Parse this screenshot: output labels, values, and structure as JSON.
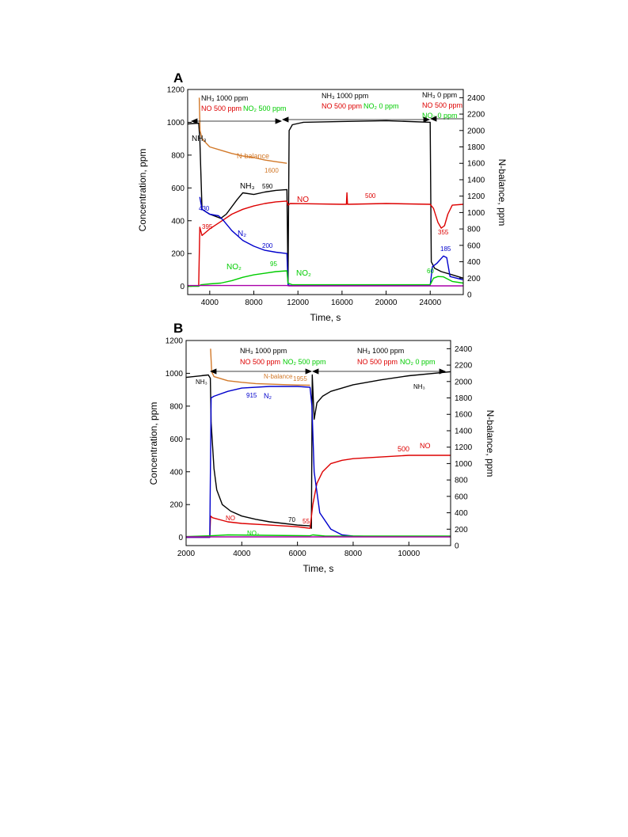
{
  "figure": {
    "panels": [
      {
        "letter": "A",
        "xlabel": "Time, s",
        "ylabel_left": "Concentration, ppm",
        "ylabel_right": "N-balance, ppm",
        "x_ticks": [
          "4000",
          "8000",
          "12000",
          "16000",
          "20000",
          "24000"
        ],
        "y_left_ticks": [
          "0",
          "200",
          "400",
          "600",
          "800",
          "1000",
          "1200"
        ],
        "y_right_ticks": [
          "0",
          "200",
          "400",
          "600",
          "800",
          "1000",
          "1200",
          "1400",
          "1600",
          "1800",
          "2000",
          "2200",
          "2400"
        ],
        "conditions": [
          {
            "nh3": "NH₃ 1000 ppm",
            "no": "NO 500 ppm",
            "no2": "NO₂ 500 ppm"
          },
          {
            "nh3": "NH₃ 1000 ppm",
            "no": "NO 500 ppm",
            "no2": "NO₂ 0 ppm"
          },
          {
            "nh3": "NH₃ 0 ppm",
            "no": "NO 500 ppm",
            "no2": "NO₂ 0 ppm"
          }
        ],
        "annotations": [
          {
            "text": "NH₃",
            "color": "#000000"
          },
          {
            "text": "N-balance",
            "color": "#d2792a"
          },
          {
            "text": "1600",
            "color": "#d2792a"
          },
          {
            "text": "NH₃",
            "color": "#000000"
          },
          {
            "text": "590",
            "color": "#000000"
          },
          {
            "text": "430",
            "color": "#0000cc"
          },
          {
            "text": "395",
            "color": "#dd0000"
          },
          {
            "text": "N₂",
            "color": "#0000cc"
          },
          {
            "text": "200",
            "color": "#0000cc"
          },
          {
            "text": "NO₂",
            "color": "#00cc00"
          },
          {
            "text": "95",
            "color": "#00cc00"
          },
          {
            "text": "NO",
            "color": "#dd0000"
          },
          {
            "text": "500",
            "color": "#dd0000"
          },
          {
            "text": "NO₂",
            "color": "#00cc00"
          },
          {
            "text": "185",
            "color": "#0000cc"
          },
          {
            "text": "355",
            "color": "#dd0000"
          },
          {
            "text": "60",
            "color": "#00cc00"
          }
        ]
      },
      {
        "letter": "B",
        "xlabel": "Time, s",
        "ylabel_left": "Concentration, ppm",
        "ylabel_right": "N-balance, ppm",
        "x_ticks": [
          "2000",
          "4000",
          "6000",
          "8000",
          "10000"
        ],
        "y_left_ticks": [
          "0",
          "200",
          "400",
          "600",
          "800",
          "1000",
          "1200"
        ],
        "y_right_ticks": [
          "0",
          "200",
          "400",
          "600",
          "800",
          "1000",
          "1200",
          "1400",
          "1600",
          "1800",
          "2000",
          "2200",
          "2400"
        ],
        "conditions": [
          {
            "nh3": "NH₃ 1000 ppm",
            "no": "NO 500 ppm",
            "no2": "NO₂ 500 ppm"
          },
          {
            "nh3": "NH₃ 1000 ppm",
            "no": "NO 500 ppm",
            "no2": "NO₂ 0 ppm"
          }
        ],
        "annotations": [
          {
            "text": "NH₃",
            "color": "#000000"
          },
          {
            "text": "N-balance",
            "color": "#d2792a"
          },
          {
            "text": "1955",
            "color": "#d2792a"
          },
          {
            "text": "915",
            "color": "#0000cc"
          },
          {
            "text": "N₂",
            "color": "#0000cc"
          },
          {
            "text": "NH₃",
            "color": "#000000"
          },
          {
            "text": "500",
            "color": "#dd0000"
          },
          {
            "text": "NO",
            "color": "#dd0000"
          },
          {
            "text": "NO",
            "color": "#dd0000"
          },
          {
            "text": "70",
            "color": "#000000"
          },
          {
            "text": "55",
            "color": "#dd0000"
          },
          {
            "text": "NO₂",
            "color": "#00cc00"
          }
        ]
      }
    ]
  },
  "chart_data": [
    {
      "type": "line",
      "panel": "A",
      "xlabel": "Time, s",
      "ylabel": "Concentration, ppm",
      "y2label": "N-balance, ppm",
      "xlim": [
        2000,
        27000
      ],
      "ylim": [
        -50,
        1200
      ],
      "y2lim": [
        0,
        2500
      ],
      "grid": false,
      "series": [
        {
          "name": "NH₃",
          "color": "#000000",
          "axis": "left",
          "x": [
            2000,
            3000,
            3100,
            3300,
            4000,
            5000,
            5500,
            6500,
            7000,
            8000,
            9000,
            10000,
            11000,
            11100,
            11200,
            11500,
            12500,
            16000,
            20000,
            24000,
            24100,
            24400,
            25000,
            26000,
            27000
          ],
          "y": [
            990,
            995,
            900,
            470,
            440,
            415,
            440,
            530,
            570,
            560,
            575,
            585,
            590,
            20,
            950,
            985,
            1000,
            1005,
            1010,
            1000,
            150,
            110,
            90,
            70,
            50
          ]
        },
        {
          "name": "NO",
          "color": "#dd0000",
          "axis": "left",
          "x": [
            2000,
            3000,
            3100,
            3300,
            4000,
            5000,
            6000,
            7000,
            8000,
            9000,
            10000,
            11000,
            11100,
            11300,
            16000,
            16400,
            16450,
            16500,
            20000,
            24000,
            24300,
            24700,
            25000,
            25300,
            25600,
            26000,
            27000
          ],
          "y": [
            0,
            5,
            360,
            310,
            350,
            395,
            440,
            470,
            490,
            505,
            515,
            520,
            495,
            505,
            500,
            500,
            570,
            500,
            505,
            500,
            475,
            390,
            355,
            370,
            440,
            495,
            500
          ]
        },
        {
          "name": "N₂",
          "color": "#0000cc",
          "axis": "left",
          "x": [
            3100,
            3300,
            4000,
            4800,
            5200,
            6000,
            7000,
            8000,
            9000,
            10000,
            11000,
            11100,
            11300,
            16000,
            20000,
            24000,
            24200,
            24600,
            25200,
            25500,
            25800,
            27000
          ],
          "y": [
            545,
            470,
            440,
            430,
            405,
            340,
            280,
            245,
            220,
            208,
            200,
            10,
            5,
            5,
            5,
            5,
            120,
            140,
            185,
            175,
            60,
            40
          ]
        },
        {
          "name": "NO₂",
          "color": "#00cc00",
          "axis": "left",
          "x": [
            2000,
            3000,
            3200,
            4000,
            5000,
            6000,
            7000,
            8000,
            9000,
            10000,
            11000,
            11100,
            11500,
            16000,
            20000,
            24000,
            24300,
            24700,
            25200,
            26000,
            27000
          ],
          "y": [
            0,
            0,
            10,
            15,
            20,
            35,
            55,
            70,
            80,
            90,
            95,
            20,
            10,
            10,
            10,
            10,
            50,
            60,
            58,
            30,
            20
          ]
        },
        {
          "name": "N-balance",
          "color": "#d2792a",
          "axis": "right",
          "x": [
            3050,
            3120,
            3300,
            4000,
            5000,
            6000,
            7000,
            8000,
            9000,
            10000,
            11000
          ],
          "y": [
            2400,
            2000,
            1900,
            1800,
            1760,
            1720,
            1690,
            1670,
            1640,
            1620,
            1600
          ]
        },
        {
          "name": "",
          "color": "#aa00aa",
          "axis": "left",
          "x": [
            2000,
            11000,
            11200,
            24000,
            27000
          ],
          "y": [
            5,
            5,
            3,
            3,
            3
          ]
        }
      ]
    },
    {
      "type": "line",
      "panel": "B",
      "xlabel": "Time, s",
      "ylabel": "Concentration, ppm",
      "y2label": "N-balance, ppm",
      "xlim": [
        2000,
        11500
      ],
      "ylim": [
        -50,
        1200
      ],
      "y2lim": [
        0,
        2500
      ],
      "grid": false,
      "series": [
        {
          "name": "NH₃",
          "color": "#000000",
          "axis": "left",
          "x": [
            2000,
            2800,
            2870,
            2900,
            3000,
            3100,
            3300,
            3600,
            4000,
            4500,
            5000,
            5500,
            6000,
            6450,
            6500,
            6530,
            6600,
            6700,
            6900,
            7200,
            7600,
            8000,
            9000,
            10000,
            11500
          ],
          "y": [
            975,
            990,
            970,
            700,
            420,
            290,
            200,
            160,
            130,
            110,
            95,
            85,
            75,
            70,
            55,
            990,
            720,
            820,
            860,
            890,
            910,
            930,
            960,
            985,
            1010
          ]
        },
        {
          "name": "NO",
          "color": "#dd0000",
          "axis": "left",
          "x": [
            2000,
            2850,
            2880,
            2950,
            3500,
            4000,
            5000,
            6000,
            6450,
            6550,
            6700,
            6900,
            7200,
            7600,
            8000,
            9000,
            10000,
            11500
          ],
          "y": [
            0,
            0,
            130,
            120,
            95,
            85,
            75,
            65,
            55,
            200,
            330,
            400,
            450,
            470,
            480,
            490,
            500,
            500
          ]
        },
        {
          "name": "N₂",
          "color": "#0000cc",
          "axis": "left",
          "x": [
            2000,
            2850,
            2900,
            3000,
            3500,
            4000,
            5000,
            6000,
            6450,
            6520,
            6600,
            6800,
            7200,
            7600,
            8000,
            9000,
            11500
          ],
          "y": [
            0,
            0,
            850,
            860,
            890,
            910,
            920,
            920,
            915,
            800,
            400,
            150,
            50,
            15,
            8,
            5,
            5
          ]
        },
        {
          "name": "NO₂",
          "color": "#00cc00",
          "axis": "left",
          "x": [
            2000,
            2900,
            3500,
            6450,
            6550,
            7000,
            11500
          ],
          "y": [
            5,
            10,
            15,
            10,
            15,
            8,
            8
          ]
        },
        {
          "name": "N-balance",
          "color": "#d2792a",
          "axis": "right",
          "x": [
            2880,
            2920,
            3000,
            3500,
            4000,
            4500,
            5000,
            5500,
            6000,
            6450
          ],
          "y": [
            2400,
            2120,
            2060,
            2010,
            1990,
            1975,
            1968,
            1962,
            1958,
            1955
          ]
        },
        {
          "name": "",
          "color": "#aa00aa",
          "axis": "left",
          "x": [
            2000,
            6500,
            11500
          ],
          "y": [
            3,
            3,
            3
          ]
        }
      ]
    }
  ]
}
